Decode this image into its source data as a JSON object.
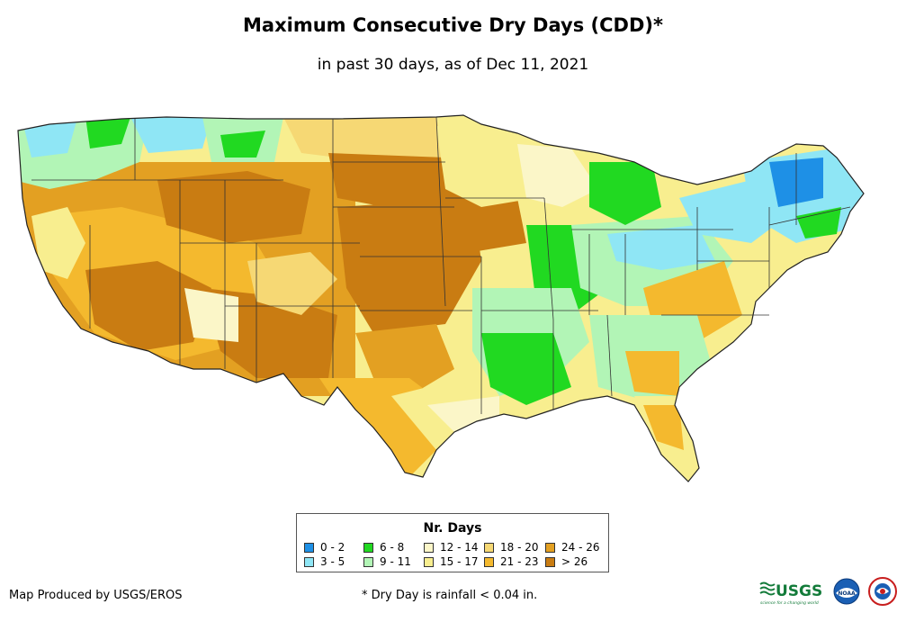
{
  "title": "Maximum Consecutive Dry Days (CDD)*",
  "subtitle": "in past 30 days, as of Dec 11, 2021",
  "legend": {
    "title": "Nr. Days",
    "items": [
      {
        "label": "0 - 2",
        "color": "#1e90e6"
      },
      {
        "label": "3 - 5",
        "color": "#8fe6f5"
      },
      {
        "label": "6 - 8",
        "color": "#21d921"
      },
      {
        "label": "9 - 11",
        "color": "#b2f5b6"
      },
      {
        "label": "12 - 14",
        "color": "#fbf6c8"
      },
      {
        "label": "15 - 17",
        "color": "#f8ee8f"
      },
      {
        "label": "18 - 20",
        "color": "#f6d874"
      },
      {
        "label": "21 - 23",
        "color": "#f4b92e"
      },
      {
        "label": "24 - 26",
        "color": "#e3a022"
      },
      {
        "label": "> 26",
        "color": "#c97c12"
      }
    ]
  },
  "credit": "Map Produced by USGS/EROS",
  "footnote": "* Dry Day is rainfall < 0.04 in.",
  "logos": {
    "usgs": "USGS",
    "usgs_tagline": "science for a changing world",
    "noaa": "NOAA"
  }
}
